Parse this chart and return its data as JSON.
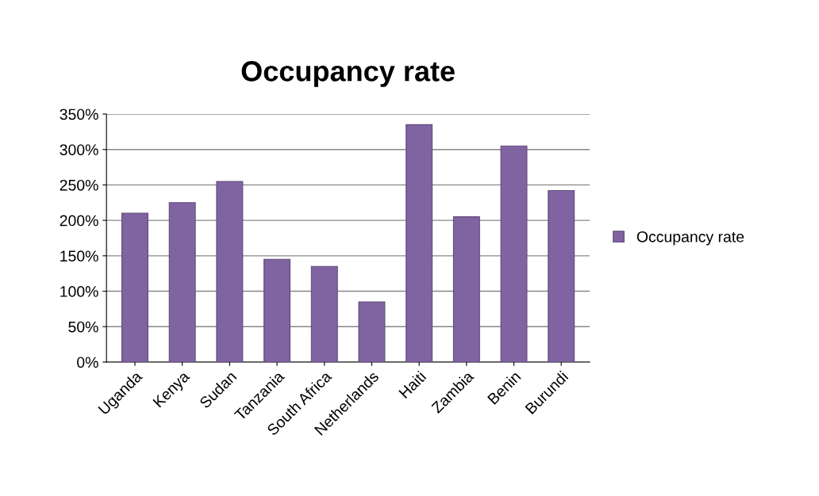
{
  "chart_data": {
    "type": "bar",
    "title": "Occupancy rate",
    "categories": [
      "Uganda",
      "Kenya",
      "Sudan",
      "Tanzania",
      "South Africa",
      "Netherlands",
      "Haiti",
      "Zambia",
      "Benin",
      "Burundi"
    ],
    "series": [
      {
        "name": "Occupancy rate",
        "color": "#8064a2",
        "values": [
          210,
          225,
          255,
          145,
          135,
          85,
          335,
          205,
          305,
          242
        ]
      }
    ],
    "ylim": [
      0,
      350
    ],
    "yticks": [
      {
        "value": 0,
        "label": "0%"
      },
      {
        "value": 50,
        "label": "50%"
      },
      {
        "value": 100,
        "label": "100%"
      },
      {
        "value": 150,
        "label": "150%"
      },
      {
        "value": 200,
        "label": "200%"
      },
      {
        "value": 250,
        "label": "250%"
      },
      {
        "value": 300,
        "label": "300%"
      },
      {
        "value": 350,
        "label": "350%"
      }
    ],
    "grid": "y",
    "legend": "right"
  }
}
